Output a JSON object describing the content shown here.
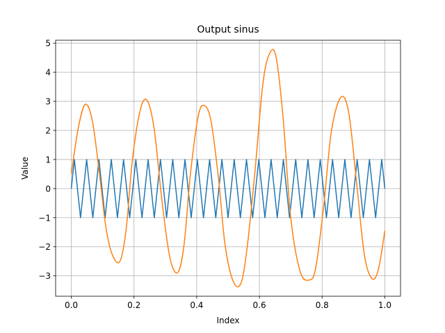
{
  "chart_data": {
    "type": "line",
    "title": "Output sinus",
    "xlabel": "Index",
    "ylabel": "Value",
    "xlim": [
      -0.05,
      1.05
    ],
    "ylim": [
      -3.7,
      5.1
    ],
    "xticks": [
      0.0,
      0.2,
      0.4,
      0.6,
      0.8,
      1.0
    ],
    "xtick_labels": [
      "0.0",
      "0.2",
      "0.4",
      "0.6",
      "0.8",
      "1.0"
    ],
    "yticks": [
      -3,
      -2,
      -1,
      0,
      1,
      2,
      3,
      4,
      5
    ],
    "ytick_labels": [
      "−3",
      "−2",
      "−1",
      "0",
      "1",
      "2",
      "3",
      "4",
      "5"
    ],
    "grid": true,
    "series": [
      {
        "color": "#1f77b4",
        "x": [
          0.0,
          0.0098,
          0.0294,
          0.049,
          0.0686,
          0.0882,
          0.1078,
          0.1275,
          0.1471,
          0.1667,
          0.1863,
          0.2059,
          0.2255,
          0.2451,
          0.2647,
          0.2843,
          0.3039,
          0.3235,
          0.3431,
          0.3627,
          0.3824,
          0.402,
          0.4216,
          0.4412,
          0.4608,
          0.4804,
          0.5,
          0.5196,
          0.5392,
          0.5588,
          0.5784,
          0.598,
          0.6176,
          0.6373,
          0.6569,
          0.6765,
          0.6961,
          0.7157,
          0.7353,
          0.7549,
          0.7745,
          0.7941,
          0.8137,
          0.8333,
          0.8529,
          0.8725,
          0.8922,
          0.9118,
          0.9314,
          0.951,
          0.9706,
          0.9902,
          1.0
        ],
        "y": [
          0,
          1,
          -1,
          1,
          -1,
          1,
          -1,
          1,
          -1,
          1,
          -1,
          1,
          -1,
          1,
          -1,
          1,
          -1,
          1,
          -1,
          1,
          -1,
          1,
          -1,
          1,
          -1,
          1,
          -1,
          1,
          -1,
          1,
          -1,
          1,
          -1,
          1,
          -1,
          1,
          -1,
          1,
          -1,
          1,
          -1,
          1,
          -1,
          1,
          -1,
          1,
          -1,
          1,
          -1,
          1,
          -1,
          1,
          0
        ]
      },
      {
        "color": "#ff7f0e",
        "x": [
          0.0,
          0.0225,
          0.045,
          0.0675,
          0.09,
          0.11,
          0.13,
          0.155,
          0.175,
          0.195,
          0.22,
          0.242,
          0.265,
          0.29,
          0.315,
          0.34,
          0.36,
          0.38,
          0.405,
          0.425,
          0.446,
          0.47,
          0.49,
          0.515,
          0.54,
          0.56,
          0.585,
          0.61,
          0.63,
          0.652,
          0.675,
          0.7,
          0.73,
          0.76,
          0.78,
          0.805,
          0.83,
          0.86,
          0.885,
          0.91,
          0.935,
          0.96,
          0.98,
          1.0
        ],
        "y": [
          0.5,
          2.1,
          2.9,
          2.3,
          0.5,
          -1.3,
          -2.25,
          -2.5,
          -1.4,
          1.0,
          2.7,
          3.03,
          2.0,
          -0.5,
          -2.4,
          -2.88,
          -1.9,
          0.5,
          2.5,
          2.85,
          2.3,
          0.3,
          -1.9,
          -3.15,
          -3.28,
          -2.1,
          0.5,
          3.5,
          4.58,
          4.58,
          2.5,
          -1.0,
          -2.85,
          -3.14,
          -2.7,
          -0.6,
          2.0,
          3.14,
          2.6,
          0.2,
          -2.3,
          -3.1,
          -2.75,
          -1.45
        ]
      }
    ]
  }
}
